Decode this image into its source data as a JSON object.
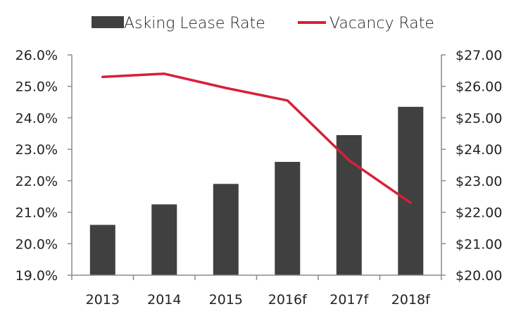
{
  "chart_data": {
    "type": "bar",
    "categories": [
      "2013",
      "2014",
      "2015",
      "2016f",
      "2017f",
      "2018f"
    ],
    "series": [
      {
        "name": "Asking Lease Rate",
        "type": "bar",
        "axis": "right",
        "color": "#404040",
        "values": [
          21.6,
          22.25,
          22.9,
          23.6,
          24.45,
          25.35
        ]
      },
      {
        "name": "Vacancy Rate",
        "type": "line",
        "axis": "left",
        "color": "#d6203a",
        "values": [
          25.3,
          25.4,
          24.95,
          24.55,
          22.65,
          21.3
        ]
      }
    ],
    "left_axis": {
      "ylim": [
        19.0,
        26.0
      ],
      "ticks": [
        19.0,
        20.0,
        21.0,
        22.0,
        23.0,
        24.0,
        25.0,
        26.0
      ],
      "tick_labels": [
        "19.0%",
        "20.0%",
        "21.0%",
        "22.0%",
        "23.0%",
        "24.0%",
        "25.0%",
        "26.0%"
      ]
    },
    "right_axis": {
      "ylim": [
        20.0,
        27.0
      ],
      "ticks": [
        20.0,
        21.0,
        22.0,
        23.0,
        24.0,
        25.0,
        26.0,
        27.0
      ],
      "tick_labels": [
        "$20.00",
        "$21.00",
        "$22.00",
        "$23.00",
        "$24.00",
        "$25.00",
        "$26.00",
        "$27.00"
      ]
    },
    "title": "",
    "xlabel": "",
    "grid": false,
    "legend_position": "top"
  }
}
